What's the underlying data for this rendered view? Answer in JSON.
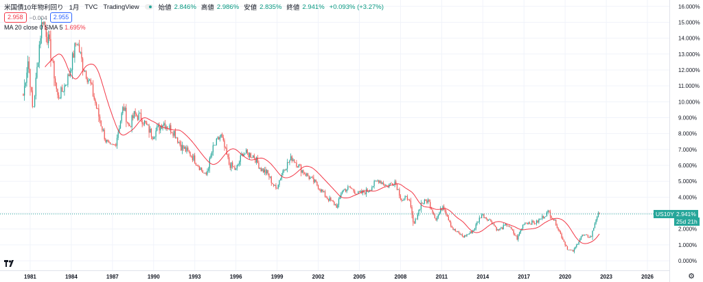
{
  "header": {
    "symbol": "米国債10年物利回り",
    "interval": "1月",
    "source": "TVC",
    "platform": "TradingView",
    "ohlc": [
      {
        "label": "始値",
        "value": "2.846%"
      },
      {
        "label": "高値",
        "value": "2.986%"
      },
      {
        "label": "安値",
        "value": "2.835%"
      },
      {
        "label": "終値",
        "value": "2.941%"
      }
    ],
    "change": "+0.093% (+3.27%)"
  },
  "trade": {
    "sell": "2.958",
    "spread": "−0.004",
    "buy": "2.955"
  },
  "indicator": {
    "label": "MA 20 close 0 SMA 5",
    "value": "1.695%"
  },
  "last_tag": {
    "symbol": "US10Y",
    "price": "2.941%",
    "countdown": "25d 21h",
    "value": 2.941
  },
  "colors": {
    "up": "#26a69a",
    "down": "#ef5350",
    "ma": "#f23645",
    "grid": "#f0f3fa",
    "axis_text": "#131722",
    "price_line": "#26a69a"
  },
  "chart_data": {
    "type": "candlestick",
    "title": "",
    "xlabel": "",
    "ylabel": "",
    "ylim": [
      -0.6,
      16.4
    ],
    "xlim": [
      1978.8,
      2027.6
    ],
    "y_ticks": [
      "0.000%",
      "1.000%",
      "2.000%",
      "3.000%",
      "4.000%",
      "5.000%",
      "6.000%",
      "7.000%",
      "8.000%",
      "9.000%",
      "10.000%",
      "11.000%",
      "12.000%",
      "13.000%",
      "14.000%",
      "15.000%",
      "16.000%"
    ],
    "x_ticks": [
      "1981",
      "1984",
      "1987",
      "1990",
      "1993",
      "1996",
      "1999",
      "2002",
      "2005",
      "2008",
      "2011",
      "2014",
      "2017",
      "2020",
      "2023",
      "2026"
    ],
    "grid": true,
    "series_knots": [
      [
        1980.5,
        10.4
      ],
      [
        1980.85,
        12.7
      ],
      [
        1981.2,
        9.3
      ],
      [
        1981.7,
        13.9
      ],
      [
        1981.9,
        15.3
      ],
      [
        1982.4,
        13.6
      ],
      [
        1982.7,
        12.0
      ],
      [
        1983.0,
        10.3
      ],
      [
        1983.3,
        10.6
      ],
      [
        1983.8,
        11.6
      ],
      [
        1984.4,
        13.9
      ],
      [
        1984.8,
        12.4
      ],
      [
        1985.4,
        11.1
      ],
      [
        1985.9,
        9.4
      ],
      [
        1986.5,
        7.6
      ],
      [
        1986.8,
        7.1
      ],
      [
        1987.2,
        7.3
      ],
      [
        1987.6,
        8.9
      ],
      [
        1987.8,
        9.7
      ],
      [
        1988.2,
        8.4
      ],
      [
        1988.6,
        9.2
      ],
      [
        1989.1,
        9.0
      ],
      [
        1989.9,
        7.9
      ],
      [
        1990.7,
        8.7
      ],
      [
        1991.5,
        8.1
      ],
      [
        1992.0,
        7.2
      ],
      [
        1992.7,
        6.7
      ],
      [
        1993.2,
        6.1
      ],
      [
        1993.8,
        5.3
      ],
      [
        1994.3,
        7.0
      ],
      [
        1994.9,
        7.9
      ],
      [
        1995.5,
        6.1
      ],
      [
        1996.0,
        5.7
      ],
      [
        1996.5,
        6.8
      ],
      [
        1997.3,
        6.6
      ],
      [
        1997.8,
        5.8
      ],
      [
        1998.3,
        5.5
      ],
      [
        1998.9,
        4.5
      ],
      [
        1999.5,
        5.8
      ],
      [
        2000.1,
        6.5
      ],
      [
        2000.8,
        5.7
      ],
      [
        2001.4,
        5.2
      ],
      [
        2001.9,
        4.8
      ],
      [
        2002.6,
        4.0
      ],
      [
        2003.4,
        3.4
      ],
      [
        2003.7,
        4.4
      ],
      [
        2004.3,
        4.6
      ],
      [
        2004.9,
        4.2
      ],
      [
        2005.6,
        4.4
      ],
      [
        2006.4,
        5.1
      ],
      [
        2007.0,
        4.7
      ],
      [
        2007.6,
        5.0
      ],
      [
        2008.1,
        3.8
      ],
      [
        2008.6,
        4.0
      ],
      [
        2008.95,
        2.2
      ],
      [
        2009.5,
        3.6
      ],
      [
        2010.0,
        3.8
      ],
      [
        2010.6,
        2.6
      ],
      [
        2011.1,
        3.5
      ],
      [
        2011.8,
        2.0
      ],
      [
        2012.6,
        1.5
      ],
      [
        2013.3,
        1.9
      ],
      [
        2013.9,
        2.9
      ],
      [
        2014.6,
        2.5
      ],
      [
        2015.1,
        1.9
      ],
      [
        2015.8,
        2.3
      ],
      [
        2016.5,
        1.4
      ],
      [
        2017.0,
        2.4
      ],
      [
        2017.9,
        2.4
      ],
      [
        2018.8,
        3.1
      ],
      [
        2019.3,
        2.4
      ],
      [
        2019.7,
        1.6
      ],
      [
        2020.2,
        0.7
      ],
      [
        2020.6,
        0.6
      ],
      [
        2021.2,
        1.6
      ],
      [
        2021.9,
        1.5
      ],
      [
        2022.3,
        2.8
      ],
      [
        2022.5,
        2.941
      ]
    ],
    "ma_period": 20,
    "ma_last": 1.695,
    "last": 2.941
  }
}
